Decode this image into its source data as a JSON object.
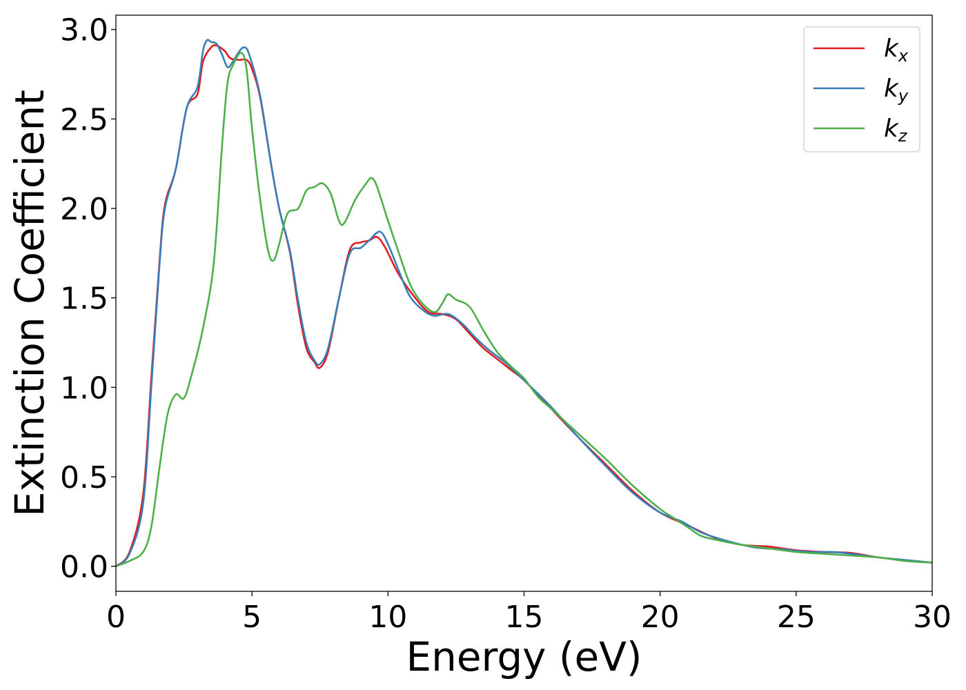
{
  "chart_data": {
    "type": "line",
    "title": "",
    "xlabel": "Energy (eV)",
    "ylabel": "Extinction Coefficient",
    "xlim": [
      0,
      30
    ],
    "ylim": [
      -0.14,
      3.08
    ],
    "xticks": [
      0,
      5,
      10,
      15,
      20,
      25,
      30
    ],
    "xtick_labels": [
      "0",
      "5",
      "10",
      "15",
      "20",
      "25",
      "30"
    ],
    "yticks": [
      0.0,
      0.5,
      1.0,
      1.5,
      2.0,
      2.5,
      3.0
    ],
    "ytick_labels": [
      "0.0",
      "0.5",
      "1.0",
      "1.5",
      "2.0",
      "2.5",
      "3.0"
    ],
    "grid": false,
    "legend_position": "top-right",
    "series": [
      {
        "name": "k_x",
        "label_base": "k",
        "label_sub": "x",
        "color": "#e41a1c",
        "points": [
          [
            0,
            0
          ],
          [
            0.5,
            0.08
          ],
          [
            1,
            0.4
          ],
          [
            1.3,
            1.05
          ],
          [
            1.6,
            1.7
          ],
          [
            1.8,
            2.02
          ],
          [
            2.2,
            2.22
          ],
          [
            2.6,
            2.56
          ],
          [
            3,
            2.64
          ],
          [
            3.2,
            2.82
          ],
          [
            3.5,
            2.9
          ],
          [
            3.7,
            2.91
          ],
          [
            4,
            2.88
          ],
          [
            4.2,
            2.84
          ],
          [
            4.5,
            2.83
          ],
          [
            4.8,
            2.83
          ],
          [
            5,
            2.78
          ],
          [
            5.3,
            2.62
          ],
          [
            5.7,
            2.25
          ],
          [
            6,
            2.0
          ],
          [
            6.4,
            1.75
          ],
          [
            6.7,
            1.45
          ],
          [
            7,
            1.22
          ],
          [
            7.3,
            1.14
          ],
          [
            7.5,
            1.11
          ],
          [
            7.8,
            1.2
          ],
          [
            8.2,
            1.5
          ],
          [
            8.6,
            1.77
          ],
          [
            9,
            1.81
          ],
          [
            9.3,
            1.82
          ],
          [
            9.6,
            1.84
          ],
          [
            9.9,
            1.78
          ],
          [
            10.4,
            1.63
          ],
          [
            11,
            1.5
          ],
          [
            11.5,
            1.42
          ],
          [
            12,
            1.41
          ],
          [
            12.5,
            1.38
          ],
          [
            13,
            1.3
          ],
          [
            13.5,
            1.22
          ],
          [
            14,
            1.16
          ],
          [
            14.5,
            1.1
          ],
          [
            15,
            1.04
          ],
          [
            16,
            0.88
          ],
          [
            17,
            0.72
          ],
          [
            18,
            0.57
          ],
          [
            19,
            0.42
          ],
          [
            20,
            0.3
          ],
          [
            21,
            0.23
          ],
          [
            22,
            0.16
          ],
          [
            23,
            0.12
          ],
          [
            24,
            0.11
          ],
          [
            25,
            0.09
          ],
          [
            26,
            0.08
          ],
          [
            27,
            0.075
          ],
          [
            28,
            0.05
          ],
          [
            29,
            0.035
          ],
          [
            30,
            0.02
          ]
        ]
      },
      {
        "name": "k_y",
        "label_base": "k",
        "label_sub": "y",
        "color": "#377eb8",
        "points": [
          [
            0,
            0
          ],
          [
            0.5,
            0.07
          ],
          [
            1,
            0.35
          ],
          [
            1.3,
            1.0
          ],
          [
            1.6,
            1.68
          ],
          [
            1.8,
            2.0
          ],
          [
            2.2,
            2.22
          ],
          [
            2.6,
            2.56
          ],
          [
            3,
            2.68
          ],
          [
            3.2,
            2.88
          ],
          [
            3.35,
            2.94
          ],
          [
            3.5,
            2.93
          ],
          [
            3.7,
            2.92
          ],
          [
            3.9,
            2.86
          ],
          [
            4.1,
            2.79
          ],
          [
            4.3,
            2.82
          ],
          [
            4.5,
            2.87
          ],
          [
            4.7,
            2.9
          ],
          [
            4.9,
            2.86
          ],
          [
            5.3,
            2.63
          ],
          [
            5.7,
            2.25
          ],
          [
            6,
            2.0
          ],
          [
            6.4,
            1.76
          ],
          [
            6.7,
            1.48
          ],
          [
            7,
            1.25
          ],
          [
            7.3,
            1.15
          ],
          [
            7.5,
            1.13
          ],
          [
            7.8,
            1.22
          ],
          [
            8.2,
            1.5
          ],
          [
            8.6,
            1.75
          ],
          [
            9,
            1.78
          ],
          [
            9.3,
            1.82
          ],
          [
            9.7,
            1.87
          ],
          [
            10,
            1.8
          ],
          [
            10.4,
            1.65
          ],
          [
            10.8,
            1.51
          ],
          [
            11.3,
            1.43
          ],
          [
            11.7,
            1.4
          ],
          [
            12.2,
            1.41
          ],
          [
            12.7,
            1.36
          ],
          [
            13.2,
            1.28
          ],
          [
            13.7,
            1.21
          ],
          [
            14.3,
            1.14
          ],
          [
            15,
            1.04
          ],
          [
            16,
            0.89
          ],
          [
            17,
            0.72
          ],
          [
            18,
            0.56
          ],
          [
            19,
            0.41
          ],
          [
            20,
            0.3
          ],
          [
            20.8,
            0.25
          ],
          [
            21.5,
            0.19
          ],
          [
            22.5,
            0.14
          ],
          [
            23.5,
            0.105
          ],
          [
            24.5,
            0.095
          ],
          [
            25.5,
            0.08
          ],
          [
            26.3,
            0.08
          ],
          [
            27,
            0.07
          ],
          [
            28,
            0.05
          ],
          [
            29,
            0.035
          ],
          [
            30,
            0.02
          ]
        ]
      },
      {
        "name": "k_z",
        "label_base": "k",
        "label_sub": "z",
        "color": "#4daf4a",
        "points": [
          [
            0,
            0
          ],
          [
            0.5,
            0.03
          ],
          [
            1,
            0.08
          ],
          [
            1.3,
            0.22
          ],
          [
            1.6,
            0.55
          ],
          [
            1.9,
            0.85
          ],
          [
            2.2,
            0.96
          ],
          [
            2.5,
            0.94
          ],
          [
            2.8,
            1.08
          ],
          [
            3.2,
            1.33
          ],
          [
            3.6,
            1.7
          ],
          [
            3.9,
            2.35
          ],
          [
            4.1,
            2.7
          ],
          [
            4.3,
            2.8
          ],
          [
            4.6,
            2.87
          ],
          [
            4.8,
            2.78
          ],
          [
            5,
            2.45
          ],
          [
            5.3,
            2.05
          ],
          [
            5.6,
            1.76
          ],
          [
            5.8,
            1.71
          ],
          [
            6,
            1.8
          ],
          [
            6.3,
            1.97
          ],
          [
            6.7,
            2.0
          ],
          [
            7,
            2.1
          ],
          [
            7.3,
            2.12
          ],
          [
            7.6,
            2.14
          ],
          [
            7.9,
            2.08
          ],
          [
            8.2,
            1.93
          ],
          [
            8.4,
            1.92
          ],
          [
            8.8,
            2.05
          ],
          [
            9.2,
            2.14
          ],
          [
            9.4,
            2.17
          ],
          [
            9.6,
            2.12
          ],
          [
            10,
            1.93
          ],
          [
            10.4,
            1.75
          ],
          [
            10.8,
            1.58
          ],
          [
            11.2,
            1.48
          ],
          [
            11.7,
            1.42
          ],
          [
            12,
            1.47
          ],
          [
            12.2,
            1.52
          ],
          [
            12.5,
            1.49
          ],
          [
            13,
            1.45
          ],
          [
            13.5,
            1.32
          ],
          [
            14,
            1.2
          ],
          [
            14.5,
            1.12
          ],
          [
            15,
            1.05
          ],
          [
            15.5,
            0.95
          ],
          [
            16,
            0.88
          ],
          [
            17,
            0.74
          ],
          [
            18,
            0.6
          ],
          [
            19,
            0.45
          ],
          [
            20,
            0.32
          ],
          [
            20.5,
            0.27
          ],
          [
            21,
            0.22
          ],
          [
            21.5,
            0.17
          ],
          [
            22,
            0.15
          ],
          [
            23,
            0.12
          ],
          [
            24,
            0.1
          ],
          [
            25,
            0.08
          ],
          [
            26,
            0.07
          ],
          [
            27,
            0.06
          ],
          [
            28,
            0.05
          ],
          [
            29,
            0.03
          ],
          [
            30,
            0.02
          ]
        ]
      }
    ]
  }
}
